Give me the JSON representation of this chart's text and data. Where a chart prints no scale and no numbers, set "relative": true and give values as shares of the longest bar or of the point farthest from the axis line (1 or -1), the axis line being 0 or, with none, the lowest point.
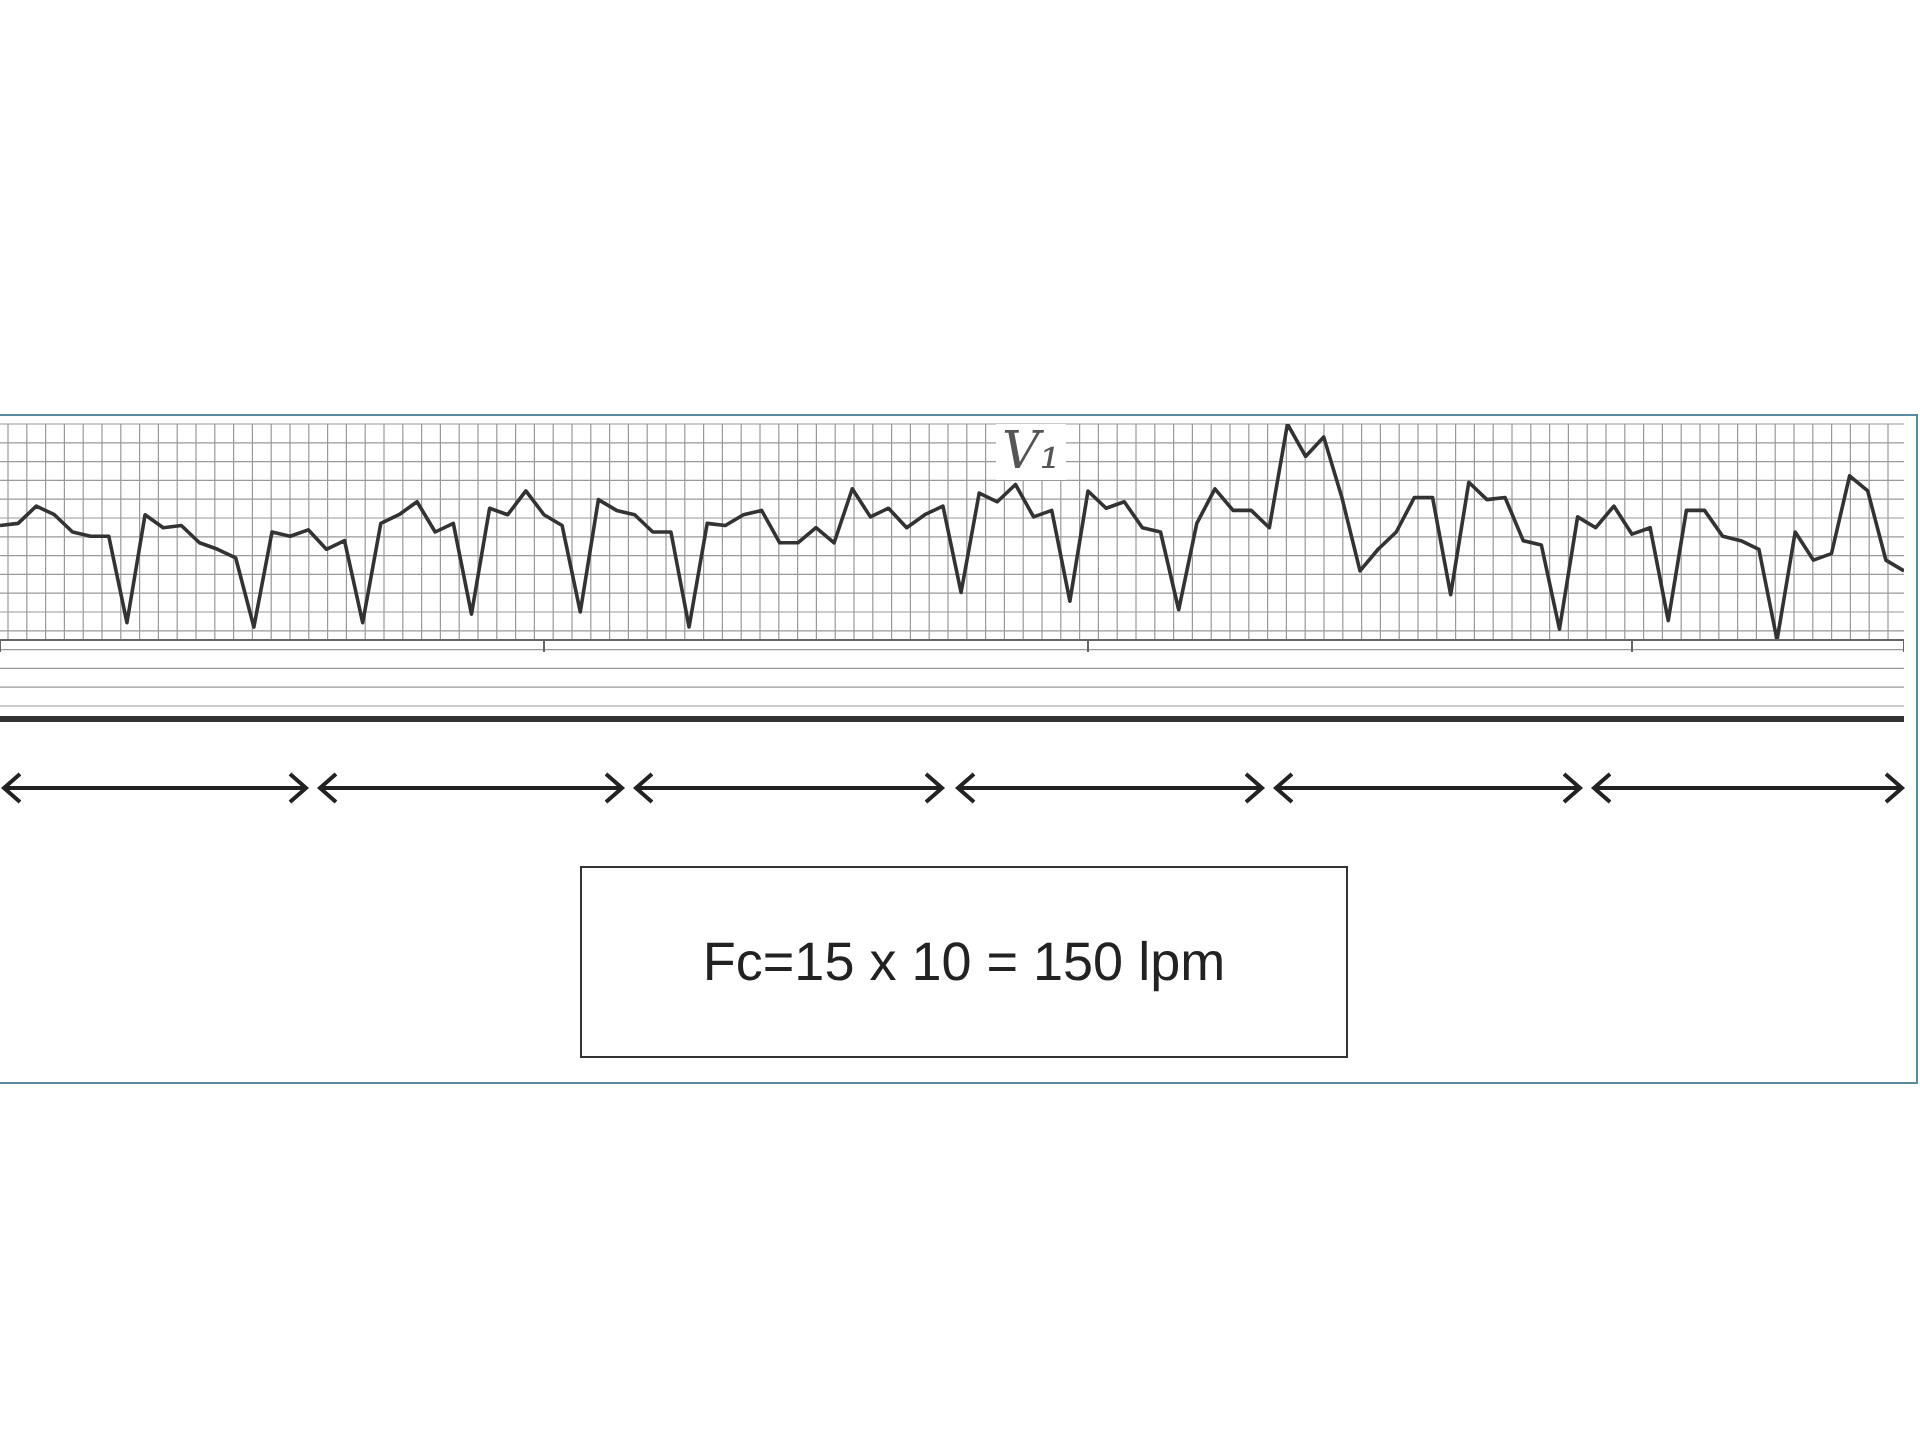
{
  "chart_data": {
    "type": "line",
    "relative": true,
    "grid": true,
    "marker": "none",
    "line_style": "solid",
    "categories": [
      null,
      null,
      null,
      null,
      null,
      null,
      null,
      null,
      null,
      null,
      null,
      null,
      null,
      null,
      null,
      null,
      null,
      null,
      null,
      null,
      null,
      null,
      null,
      null,
      null,
      null,
      null,
      null,
      null,
      null,
      null,
      null,
      null,
      null,
      null,
      null,
      null,
      null,
      null,
      null,
      null,
      null,
      null,
      null,
      null,
      null,
      null,
      null,
      null,
      null,
      null,
      null,
      null,
      null,
      null,
      null,
      null,
      null,
      null,
      null,
      null,
      null,
      null,
      null,
      null,
      null,
      null,
      null,
      null,
      null,
      null,
      null,
      null,
      null,
      null,
      null,
      null,
      null,
      null,
      null,
      null,
      null,
      null,
      null,
      null,
      null,
      null,
      null,
      null,
      null,
      null,
      null,
      null,
      null,
      null,
      null,
      null,
      null,
      null,
      null,
      null,
      null,
      null,
      null,
      null,
      null
    ],
    "series": [
      {
        "color": "#333333",
        "values": [
          0.53,
          0.54,
          0.62,
          0.58,
          0.5,
          0.48,
          0.48,
          0.08,
          0.58,
          0.52,
          0.53,
          0.45,
          0.42,
          0.38,
          0.06,
          0.5,
          0.48,
          0.51,
          0.42,
          0.46,
          0.08,
          0.54,
          0.58,
          0.64,
          0.5,
          0.54,
          0.12,
          0.61,
          0.58,
          0.69,
          0.58,
          0.53,
          0.13,
          0.65,
          0.6,
          0.58,
          0.5,
          0.5,
          0.06,
          0.54,
          0.53,
          0.58,
          0.6,
          0.45,
          0.45,
          0.52,
          0.45,
          0.7,
          0.57,
          0.61,
          0.52,
          0.58,
          0.62,
          0.22,
          0.68,
          0.64,
          0.72,
          0.57,
          0.6,
          0.18,
          0.69,
          0.61,
          0.64,
          0.52,
          0.5,
          0.14,
          0.54,
          0.7,
          0.6,
          0.6,
          0.52,
          1.0,
          0.85,
          0.94,
          0.66,
          0.32,
          0.42,
          0.5,
          0.66,
          0.66,
          0.21,
          0.73,
          0.65,
          0.66,
          0.46,
          0.44,
          0.05,
          0.57,
          0.52,
          0.62,
          0.49,
          0.52,
          0.09,
          0.6,
          0.6,
          0.48,
          0.46,
          0.42,
          0.0,
          0.5,
          0.37,
          0.4,
          0.76,
          0.69,
          0.37,
          0.32
        ]
      }
    ],
    "annotations": [
      "V₁",
      "Fc=15 x 10 = 150 lpm"
    ]
  }
}
